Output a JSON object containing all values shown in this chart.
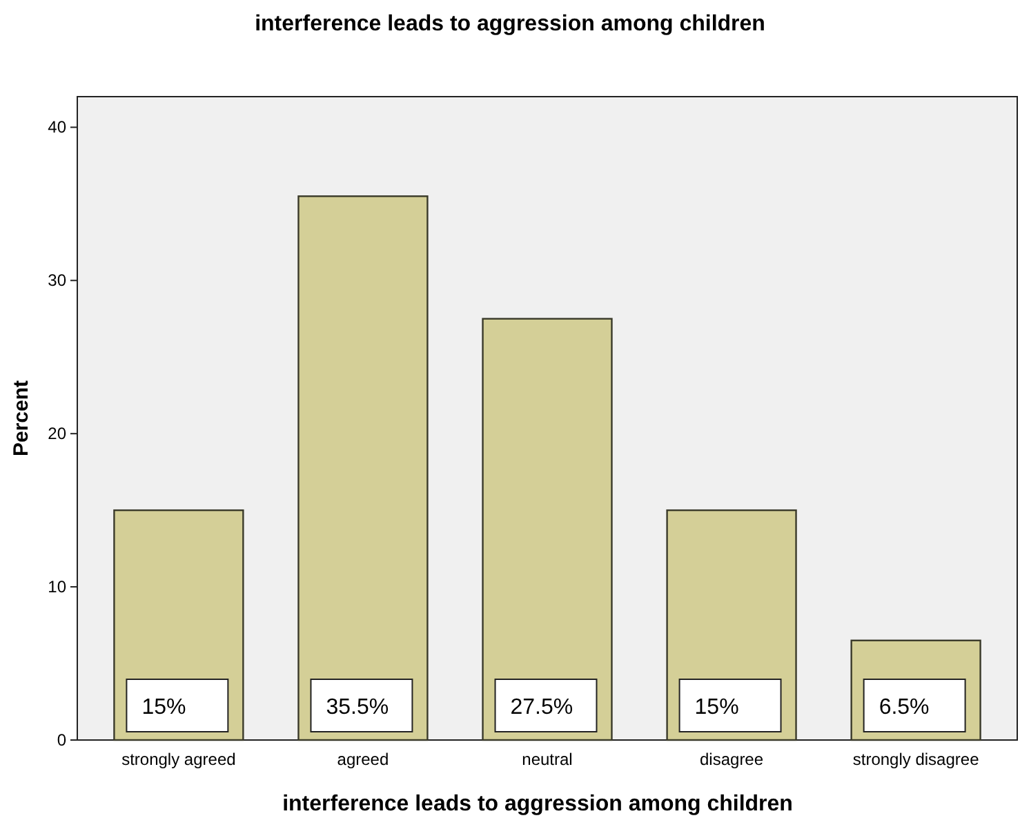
{
  "chart_data": {
    "type": "bar",
    "title": "interference leads to aggression among children",
    "xlabel": "interference leads to aggression among children",
    "ylabel": "Percent",
    "categories": [
      "strongly agreed",
      "agreed",
      "neutral",
      "disagree",
      "strongly disagree"
    ],
    "values": [
      15,
      35.5,
      27.5,
      15,
      6.5
    ],
    "value_labels": [
      "15%",
      "35.5%",
      "27.5%",
      "15%",
      "6.5%"
    ],
    "color": "#d4cf97",
    "ylim": [
      0,
      42
    ],
    "yticks": [
      0,
      10,
      20,
      30,
      40
    ],
    "grid": false
  }
}
